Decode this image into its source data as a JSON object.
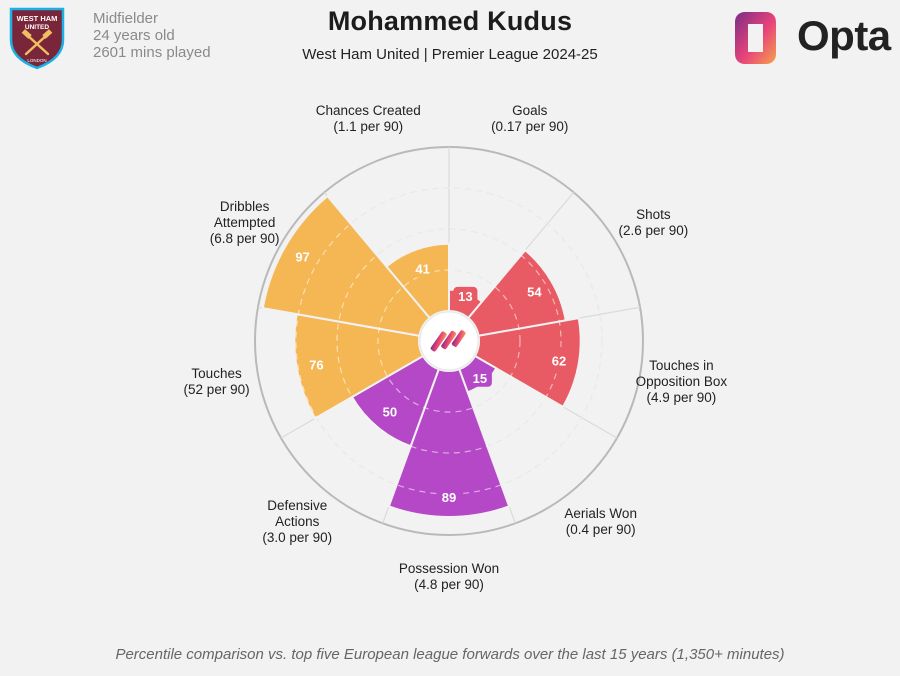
{
  "header": {
    "player_name": "Mohammed Kudus",
    "subtitle": "West Ham United | Premier League 2024-25",
    "position": "Midfielder",
    "age": "24 years old",
    "minutes": "2601 mins played"
  },
  "branding": {
    "club_crest_text": [
      "WEST HAM",
      "UNITED",
      "LONDON"
    ],
    "provider": "Opta"
  },
  "footnote": "Percentile comparison vs. top five European league forwards over the last 15 years (1,350+ minutes)",
  "colors": {
    "attacking": "#e85a64",
    "possession": "#b548c6",
    "defending_axis": "#b548c6",
    "creativity": "#f5b654",
    "grid": "#c8c8c8",
    "bg": "#f2f2f2",
    "claret": "#7a263a",
    "sky": "#1bb1e7",
    "opta_gradient": [
      "#7b2d86",
      "#e8437a",
      "#f5a24a"
    ]
  },
  "chart_data": {
    "type": "polar-area",
    "scale": "percentile",
    "rlim": [
      0,
      100
    ],
    "segments": [
      {
        "name": "Goals",
        "rate": "(0.17 per 90)",
        "percentile": 13,
        "group": "attacking"
      },
      {
        "name": "Shots",
        "rate": "(2.6 per 90)",
        "percentile": 54,
        "group": "attacking"
      },
      {
        "name": "Touches in Opposition Box",
        "name_lines": [
          "Touches in",
          "Opposition Box"
        ],
        "rate": "(4.9 per 90)",
        "percentile": 62,
        "group": "attacking"
      },
      {
        "name": "Aerials Won",
        "rate": "(0.4 per 90)",
        "percentile": 15,
        "group": "possession"
      },
      {
        "name": "Possession Won",
        "rate": "(4.8 per 90)",
        "percentile": 89,
        "group": "possession"
      },
      {
        "name": "Defensive Actions",
        "name_lines": [
          "Defensive",
          "Actions"
        ],
        "rate": "(3.0 per 90)",
        "percentile": 50,
        "group": "possession"
      },
      {
        "name": "Touches",
        "rate": "(52 per 90)",
        "percentile": 76,
        "group": "creativity"
      },
      {
        "name": "Dribbles Attempted",
        "name_lines": [
          "Dribbles",
          "Attempted"
        ],
        "rate": "(6.8 per 90)",
        "percentile": 97,
        "group": "creativity"
      },
      {
        "name": "Chances Created",
        "rate": "(1.1 per 90)",
        "percentile": 41,
        "group": "creativity"
      }
    ]
  }
}
